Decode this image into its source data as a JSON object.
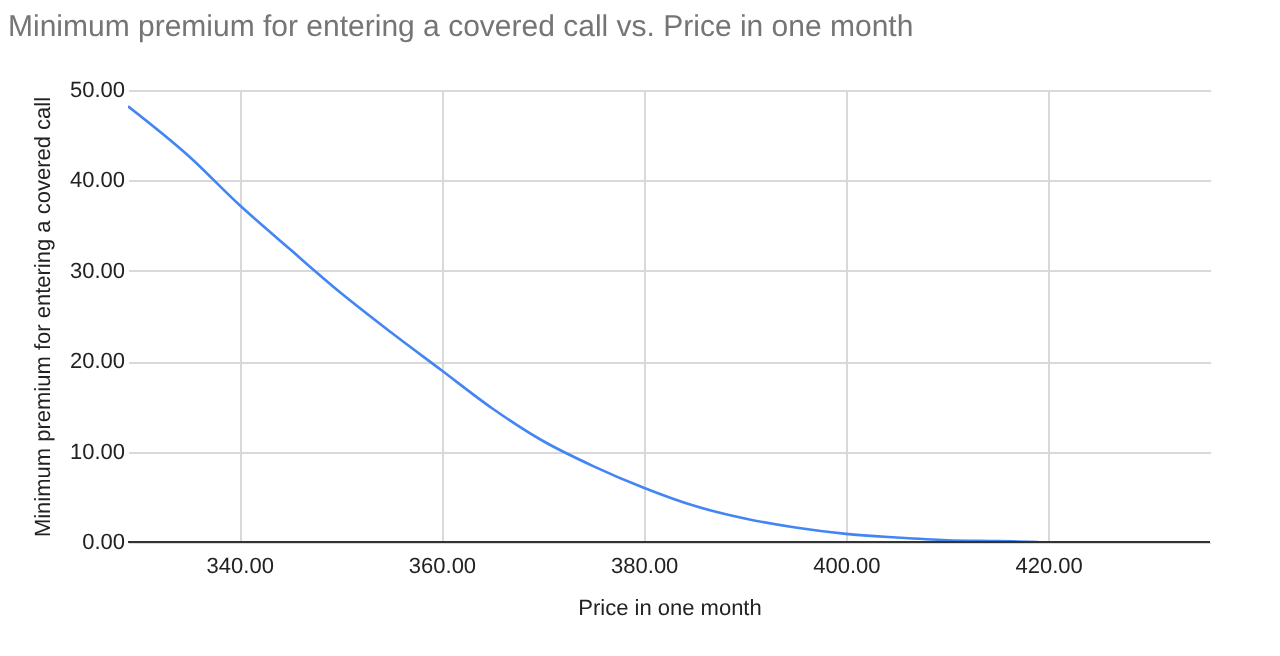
{
  "chart_data": {
    "type": "line",
    "title": "Minimum premium for entering a covered call vs. Price in one month",
    "xlabel": "Price in one month",
    "ylabel": "Minimum premium for entering a covered call",
    "x": [
      329,
      335,
      340,
      345,
      350,
      355,
      360,
      365,
      370,
      375,
      380,
      385,
      390,
      395,
      400,
      405,
      410,
      415,
      419
    ],
    "series": [
      {
        "color": "#4285f4",
        "values": [
          48.2,
          42.7,
          37.3,
          32.4,
          27.6,
          23.2,
          19.0,
          14.8,
          11.2,
          8.4,
          6.0,
          4.0,
          2.6,
          1.6,
          0.9,
          0.5,
          0.2,
          0.1,
          0
        ]
      }
    ],
    "xlim": [
      329,
      436
    ],
    "xticks": [
      {
        "value": 340,
        "label": "340.00"
      },
      {
        "value": 360,
        "label": "360.00"
      },
      {
        "value": 380,
        "label": "380.00"
      },
      {
        "value": 400,
        "label": "400.00"
      },
      {
        "value": 420,
        "label": "420.00"
      }
    ],
    "ylim": [
      0,
      50
    ],
    "yticks": [
      {
        "value": 0,
        "label": "0.00"
      },
      {
        "value": 10,
        "label": "10.00"
      },
      {
        "value": 20,
        "label": "20.00"
      },
      {
        "value": 30,
        "label": "30.00"
      },
      {
        "value": 40,
        "label": "40.00"
      },
      {
        "value": 50,
        "label": "50.00"
      }
    ],
    "grid": true,
    "marker": "none",
    "line_style": "solid"
  }
}
